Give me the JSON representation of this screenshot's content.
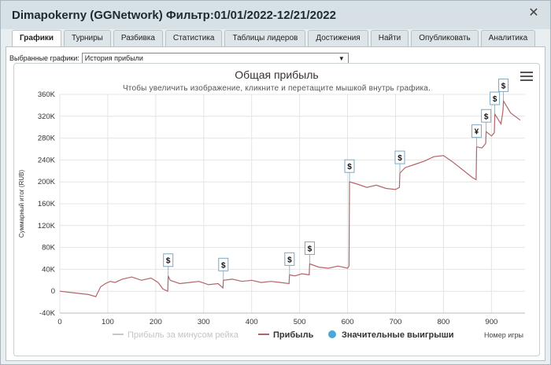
{
  "window": {
    "title": "Dimapokerny (GGNetwork) Фильтр:01/01/2022-12/21/2022",
    "close_symbol": "✕"
  },
  "tabs": [
    {
      "label": "Графики",
      "active": true
    },
    {
      "label": "Турниры"
    },
    {
      "label": "Разбивка"
    },
    {
      "label": "Статистика"
    },
    {
      "label": "Таблицы лидеров"
    },
    {
      "label": "Достижения"
    },
    {
      "label": "Найти"
    },
    {
      "label": "Опубликовать"
    },
    {
      "label": "Аналитика"
    }
  ],
  "selector": {
    "label": "Выбранные графики:",
    "value": "История прибыли"
  },
  "chart": {
    "menu_icon": "hamburger-menu-icon",
    "colors": {
      "profit_line": "#b3646a",
      "rake_line": "#c8c8c8",
      "marker": "#4aa8d6"
    }
  },
  "chart_data": {
    "type": "line",
    "title": "Общая прибыль",
    "subtitle": "Чтобы увеличить изображение, кликните и перетащите мышкой внутрь графика.",
    "ylabel": "Суммарный итог (RUB)",
    "xlabel": "Номер игры",
    "xlim": [
      0,
      970
    ],
    "ylim": [
      -40000,
      360000
    ],
    "x_ticks": [
      "0",
      "100",
      "200",
      "300",
      "400",
      "500",
      "600",
      "700",
      "800",
      "900"
    ],
    "x_tick_values": [
      0,
      100,
      200,
      300,
      400,
      500,
      600,
      700,
      800,
      900
    ],
    "y_ticks": [
      "-40K",
      "0",
      "40K",
      "80K",
      "120K",
      "160K",
      "200K",
      "240K",
      "280K",
      "320K",
      "360K"
    ],
    "y_tick_values": [
      -40000,
      0,
      40000,
      80000,
      120000,
      160000,
      200000,
      240000,
      280000,
      320000,
      360000
    ],
    "grid": true,
    "legend_position": "bottom",
    "legend": [
      {
        "name": "Прибыль за минусом рейка",
        "kind": "line",
        "faded": true
      },
      {
        "name": "Прибыль",
        "kind": "line"
      },
      {
        "name": "Значительные выигрыши",
        "kind": "marker"
      }
    ],
    "series": [
      {
        "name": "Прибыль",
        "x": [
          0,
          20,
          40,
          60,
          75,
          85,
          95,
          105,
          115,
          130,
          150,
          170,
          190,
          205,
          215,
          225,
          226,
          230,
          250,
          270,
          290,
          310,
          330,
          340,
          341,
          360,
          380,
          400,
          420,
          440,
          460,
          478,
          479,
          490,
          505,
          520,
          521,
          540,
          560,
          580,
          600,
          603,
          604,
          620,
          640,
          660,
          680,
          700,
          708,
          709,
          720,
          740,
          760,
          780,
          800,
          820,
          840,
          860,
          868,
          869,
          880,
          888,
          889,
          900,
          906,
          907,
          920,
          924,
          925,
          940,
          960
        ],
        "y": [
          0,
          -2000,
          -4000,
          -6000,
          -10000,
          8000,
          14000,
          18000,
          16000,
          22000,
          26000,
          20000,
          24000,
          16000,
          4000,
          0,
          28000,
          20000,
          14000,
          16000,
          18000,
          12000,
          14000,
          6000,
          20000,
          22000,
          18000,
          20000,
          16000,
          18000,
          16000,
          14000,
          30000,
          28000,
          32000,
          30000,
          50000,
          44000,
          42000,
          46000,
          42000,
          46000,
          200000,
          196000,
          190000,
          194000,
          188000,
          186000,
          190000,
          216000,
          226000,
          232000,
          238000,
          246000,
          248000,
          236000,
          222000,
          208000,
          204000,
          264000,
          262000,
          270000,
          292000,
          284000,
          290000,
          324000,
          306000,
          330000,
          348000,
          326000,
          313000
        ]
      }
    ],
    "big_wins": [
      {
        "x": 226,
        "y": 28000,
        "label": "$"
      },
      {
        "x": 341,
        "y": 20000,
        "label": "$"
      },
      {
        "x": 479,
        "y": 30000,
        "label": "$"
      },
      {
        "x": 521,
        "y": 50000,
        "label": "$"
      },
      {
        "x": 604,
        "y": 200000,
        "label": "$"
      },
      {
        "x": 709,
        "y": 216000,
        "label": "$"
      },
      {
        "x": 869,
        "y": 264000,
        "label": "¥"
      },
      {
        "x": 889,
        "y": 292000,
        "label": "$"
      },
      {
        "x": 907,
        "y": 324000,
        "label": "$"
      },
      {
        "x": 925,
        "y": 348000,
        "label": "$"
      }
    ]
  }
}
